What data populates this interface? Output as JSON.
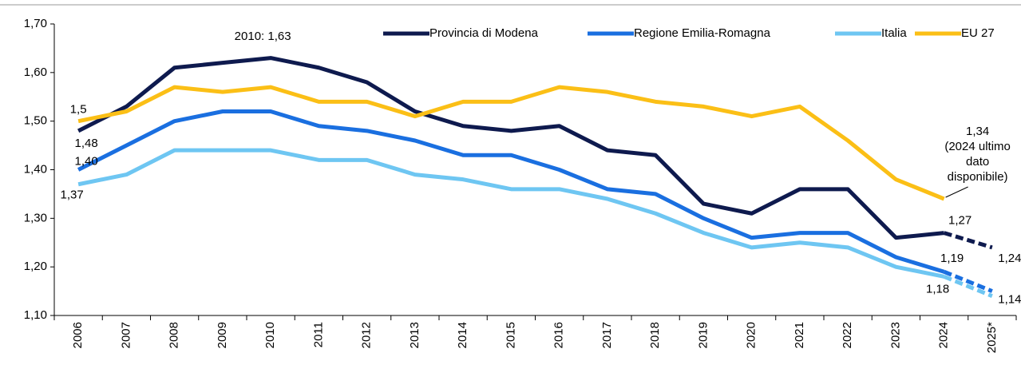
{
  "chart_data": {
    "type": "line",
    "categories": [
      "2006",
      "2007",
      "2008",
      "2009",
      "2010",
      "2011",
      "2012",
      "2013",
      "2014",
      "2015",
      "2016",
      "2017",
      "2018",
      "2019",
      "2020",
      "2021",
      "2022",
      "2023",
      "2024",
      "2025*"
    ],
    "series": [
      {
        "name": "Provincia di Modena",
        "color": "#0e1a4e",
        "values": [
          1.48,
          1.53,
          1.61,
          1.62,
          1.63,
          1.61,
          1.58,
          1.52,
          1.49,
          1.48,
          1.49,
          1.44,
          1.43,
          1.33,
          1.31,
          1.36,
          1.36,
          1.26,
          1.27,
          1.24
        ],
        "value_labels": [
          "1,48",
          null,
          null,
          null,
          null,
          null,
          null,
          null,
          null,
          null,
          null,
          null,
          null,
          null,
          null,
          null,
          null,
          null,
          "1,27",
          "1,24"
        ]
      },
      {
        "name": "Regione Emilia-Romagna",
        "color": "#1a6fe0",
        "values": [
          1.4,
          1.45,
          1.5,
          1.52,
          1.52,
          1.49,
          1.48,
          1.46,
          1.43,
          1.43,
          1.4,
          1.36,
          1.35,
          1.3,
          1.26,
          1.27,
          1.27,
          1.22,
          1.19,
          1.15
        ],
        "value_labels": [
          "1,40",
          null,
          null,
          null,
          null,
          null,
          null,
          null,
          null,
          null,
          null,
          null,
          null,
          null,
          null,
          null,
          null,
          null,
          "1,19",
          null
        ]
      },
      {
        "name": "Italia",
        "color": "#6ec6f2",
        "values": [
          1.37,
          1.39,
          1.44,
          1.44,
          1.44,
          1.42,
          1.42,
          1.39,
          1.38,
          1.36,
          1.36,
          1.34,
          1.31,
          1.27,
          1.24,
          1.25,
          1.24,
          1.2,
          1.18,
          1.14
        ],
        "value_labels": [
          "1,37",
          null,
          null,
          null,
          null,
          null,
          null,
          null,
          null,
          null,
          null,
          null,
          null,
          null,
          null,
          null,
          null,
          null,
          "1,18",
          "1,14"
        ]
      },
      {
        "name": "EU 27",
        "color": "#fbbf16",
        "values": [
          1.5,
          1.52,
          1.57,
          1.56,
          1.57,
          1.54,
          1.54,
          1.51,
          1.54,
          1.54,
          1.57,
          1.56,
          1.54,
          1.53,
          1.51,
          1.53,
          1.46,
          1.38,
          1.34,
          null
        ],
        "value_labels": [
          "1,5",
          null,
          null,
          null,
          null,
          null,
          null,
          null,
          null,
          null,
          null,
          null,
          null,
          null,
          null,
          null,
          null,
          null,
          "1,34",
          null
        ]
      }
    ],
    "annotations": [
      {
        "text": "2010: 1,63"
      },
      {
        "lines": [
          "(2024 ultimo",
          "dato",
          "disponibile)"
        ]
      }
    ],
    "ylim": [
      1.1,
      1.7
    ],
    "yticks": [
      {
        "value": 1.1,
        "label": "1,10"
      },
      {
        "value": 1.2,
        "label": "1,20"
      },
      {
        "value": 1.3,
        "label": "1,30"
      },
      {
        "value": 1.4,
        "label": "1,40"
      },
      {
        "value": 1.5,
        "label": "1,50"
      },
      {
        "value": 1.6,
        "label": "1,60"
      },
      {
        "value": 1.7,
        "label": "1,70"
      }
    ],
    "grid": false,
    "legend": "top-right",
    "last_segment_dashed": true
  }
}
